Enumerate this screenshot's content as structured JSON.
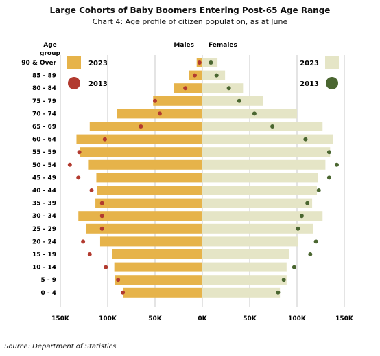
{
  "chart_data": {
    "type": "bar",
    "title": "Large Cohorts of Baby Boomers Entering Post-65 Age Range",
    "subtitle": "Chart 4: Age profile of citizen population, as at June",
    "source": "Source: Department of Statistics",
    "ylabel": "Age group",
    "ylabel_lines": [
      "Age",
      "group"
    ],
    "left_header": "Males",
    "right_header": "Females",
    "x_tick_labels": [
      "150K",
      "100K",
      "50K",
      "0K",
      "50K",
      "100K",
      "150K"
    ],
    "x_tick_values": [
      -150000,
      -100000,
      -50000,
      0,
      50000,
      100000,
      150000
    ],
    "xlim": [
      -150000,
      150000
    ],
    "grid": true,
    "legend_placement": "top-left and top-right",
    "categories": [
      "90 & Over",
      "85 - 89",
      "80 - 84",
      "75 - 79",
      "70 - 74",
      "65 - 69",
      "60 - 64",
      "55 - 59",
      "50 - 54",
      "45 - 49",
      "40 - 44",
      "35 - 39",
      "30 - 34",
      "25 - 29",
      "20 - 24",
      "15 - 19",
      "10 - 14",
      "5 - 9",
      "0 - 4"
    ],
    "males_2023": [
      6000,
      14000,
      30000,
      52000,
      90000,
      119000,
      133000,
      129000,
      120000,
      112000,
      111000,
      113000,
      131000,
      123000,
      108000,
      95000,
      93000,
      92000,
      84000
    ],
    "females_2023": [
      16000,
      24000,
      43000,
      64000,
      100000,
      127000,
      138000,
      135000,
      130000,
      122000,
      121000,
      116000,
      127000,
      117000,
      101000,
      92000,
      89000,
      89000,
      82000
    ],
    "males_2013": [
      3000,
      8000,
      18000,
      50000,
      45000,
      65000,
      103000,
      130000,
      140000,
      131000,
      117000,
      106000,
      106000,
      106000,
      126000,
      119000,
      102000,
      89000,
      84000
    ],
    "females_2013": [
      9000,
      15000,
      28000,
      39000,
      55000,
      74000,
      109000,
      134000,
      142000,
      134000,
      123000,
      111000,
      105000,
      101000,
      120000,
      114000,
      97000,
      86000,
      80000
    ],
    "legend": {
      "male_2023": "2023",
      "male_2013": "2013",
      "female_2023": "2023",
      "female_2013": "2013"
    },
    "colors": {
      "male_bar": "#e6b34a",
      "female_bar": "#e5e5c6",
      "male_dot": "#b23a2f",
      "female_dot": "#4a6630",
      "grid": "#c8c8c8"
    }
  }
}
